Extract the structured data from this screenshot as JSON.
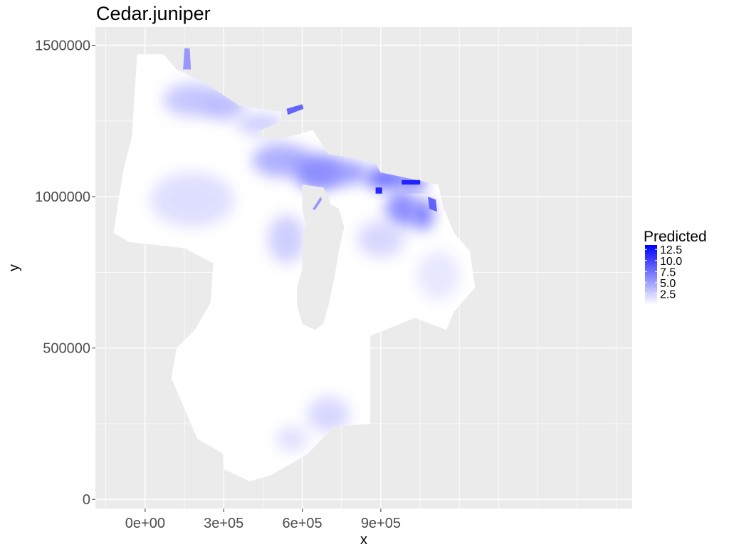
{
  "chart_data": {
    "type": "heatmap",
    "title": "Cedar.juniper",
    "xlabel": "x",
    "ylabel": "y",
    "xlim": [
      -190000,
      1860000
    ],
    "ylim": [
      -30000,
      1560000
    ],
    "x_ticks": [
      0,
      300000,
      600000,
      900000
    ],
    "x_tick_labels": [
      "0e+00",
      "3e+05",
      "6e+05",
      "9e+05"
    ],
    "y_ticks": [
      0,
      500000,
      1000000,
      1500000
    ],
    "y_tick_labels": [
      "0",
      "500000",
      "1000000",
      "1500000"
    ],
    "panel_background": "#ebebeb",
    "grid": true,
    "grid_color": "#ffffff",
    "legend": {
      "title": "Predicted",
      "position": "right",
      "breaks": [
        12.5,
        10.0,
        7.5,
        5.0,
        2.5
      ],
      "labels": [
        "12.5",
        "10.0",
        "7.5",
        "5.0",
        "2.5"
      ],
      "range": [
        0,
        13.5
      ],
      "low_color": "#ffffff",
      "high_color": "#0000ff"
    },
    "region_outline": [
      [
        -30000,
        1470000
      ],
      [
        70000,
        1470000
      ],
      [
        120000,
        1420000
      ],
      [
        240000,
        1370000
      ],
      [
        360000,
        1300000
      ],
      [
        520000,
        1280000
      ],
      [
        520000,
        1250000
      ],
      [
        420000,
        1210000
      ],
      [
        480000,
        1190000
      ],
      [
        560000,
        1200000
      ],
      [
        640000,
        1220000
      ],
      [
        700000,
        1140000
      ],
      [
        780000,
        1130000
      ],
      [
        880000,
        1110000
      ],
      [
        900000,
        1080000
      ],
      [
        1120000,
        1040000
      ],
      [
        1140000,
        960000
      ],
      [
        1180000,
        880000
      ],
      [
        1240000,
        820000
      ],
      [
        1260000,
        700000
      ],
      [
        1180000,
        620000
      ],
      [
        1150000,
        560000
      ],
      [
        1030000,
        600000
      ],
      [
        860000,
        540000
      ],
      [
        860000,
        250000
      ],
      [
        720000,
        240000
      ],
      [
        620000,
        150000
      ],
      [
        480000,
        80000
      ],
      [
        400000,
        60000
      ],
      [
        300000,
        100000
      ],
      [
        300000,
        150000
      ],
      [
        200000,
        200000
      ],
      [
        150000,
        300000
      ],
      [
        100000,
        400000
      ],
      [
        120000,
        500000
      ],
      [
        190000,
        560000
      ],
      [
        250000,
        650000
      ],
      [
        260000,
        780000
      ],
      [
        150000,
        830000
      ],
      [
        -60000,
        850000
      ],
      [
        -120000,
        880000
      ],
      [
        -100000,
        1000000
      ],
      [
        -80000,
        1100000
      ],
      [
        -50000,
        1200000
      ],
      [
        -40000,
        1350000
      ]
    ],
    "lakes": [
      [
        [
          660000,
          1000000
        ],
        [
          740000,
          960000
        ],
        [
          760000,
          900000
        ],
        [
          740000,
          820000
        ],
        [
          720000,
          720000
        ],
        [
          700000,
          640000
        ],
        [
          680000,
          580000
        ],
        [
          650000,
          560000
        ],
        [
          600000,
          580000
        ],
        [
          580000,
          640000
        ],
        [
          580000,
          700000
        ],
        [
          600000,
          760000
        ],
        [
          600000,
          860000
        ],
        [
          620000,
          930000
        ],
        [
          650000,
          990000
        ]
      ],
      [
        [
          600000,
          1040000
        ],
        [
          680000,
          1030000
        ],
        [
          700000,
          1000000
        ],
        [
          720000,
          940000
        ],
        [
          700000,
          900000
        ],
        [
          660000,
          860000
        ],
        [
          620000,
          880000
        ],
        [
          600000,
          960000
        ]
      ]
    ],
    "hotspots": [
      {
        "x": 180000,
        "y": 1320000,
        "value": 3.5,
        "rx": 110000,
        "ry": 55000
      },
      {
        "x": 300000,
        "y": 1300000,
        "value": 4,
        "rx": 80000,
        "ry": 45000
      },
      {
        "x": 440000,
        "y": 1240000,
        "value": 3,
        "rx": 90000,
        "ry": 35000
      },
      {
        "x": 520000,
        "y": 1120000,
        "value": 5,
        "rx": 110000,
        "ry": 55000
      },
      {
        "x": 660000,
        "y": 1080000,
        "value": 7,
        "rx": 90000,
        "ry": 60000
      },
      {
        "x": 760000,
        "y": 1080000,
        "value": 6,
        "rx": 90000,
        "ry": 40000
      },
      {
        "x": 920000,
        "y": 1060000,
        "value": 9,
        "rx": 80000,
        "ry": 35000
      },
      {
        "x": 1030000,
        "y": 1050000,
        "value": 12.5,
        "rx": 40000,
        "ry": 20000
      },
      {
        "x": 980000,
        "y": 960000,
        "value": 7,
        "rx": 60000,
        "ry": 60000
      },
      {
        "x": 1060000,
        "y": 940000,
        "value": 8,
        "rx": 40000,
        "ry": 50000
      },
      {
        "x": 900000,
        "y": 860000,
        "value": 2.5,
        "rx": 90000,
        "ry": 60000
      },
      {
        "x": 180000,
        "y": 990000,
        "value": 2,
        "rx": 160000,
        "ry": 90000
      },
      {
        "x": 700000,
        "y": 280000,
        "value": 2.5,
        "rx": 80000,
        "ry": 60000
      },
      {
        "x": 560000,
        "y": 200000,
        "value": 2,
        "rx": 60000,
        "ry": 40000
      },
      {
        "x": 540000,
        "y": 860000,
        "value": 3,
        "rx": 70000,
        "ry": 80000
      },
      {
        "x": 1120000,
        "y": 740000,
        "value": 1.5,
        "rx": 80000,
        "ry": 80000
      }
    ],
    "fragments": [
      {
        "points": [
          [
            150000,
            1490000
          ],
          [
            170000,
            1490000
          ],
          [
            175000,
            1420000
          ],
          [
            145000,
            1420000
          ]
        ],
        "value": 6
      },
      {
        "points": [
          [
            540000,
            1290000
          ],
          [
            600000,
            1305000
          ],
          [
            605000,
            1290000
          ],
          [
            545000,
            1270000
          ]
        ],
        "value": 9
      },
      {
        "points": [
          [
            980000,
            1055000
          ],
          [
            1050000,
            1055000
          ],
          [
            1050000,
            1040000
          ],
          [
            980000,
            1040000
          ]
        ],
        "value": 12.5
      },
      {
        "points": [
          [
            640000,
            960000
          ],
          [
            670000,
            1000000
          ],
          [
            675000,
            990000
          ],
          [
            648000,
            955000
          ]
        ],
        "value": 6
      },
      {
        "points": [
          [
            1080000,
            1000000
          ],
          [
            1110000,
            990000
          ],
          [
            1115000,
            950000
          ],
          [
            1085000,
            960000
          ]
        ],
        "value": 9
      },
      {
        "points": [
          [
            880000,
            1010000
          ],
          [
            905000,
            1010000
          ],
          [
            905000,
            1030000
          ],
          [
            880000,
            1030000
          ]
        ],
        "value": 12.5
      }
    ]
  }
}
